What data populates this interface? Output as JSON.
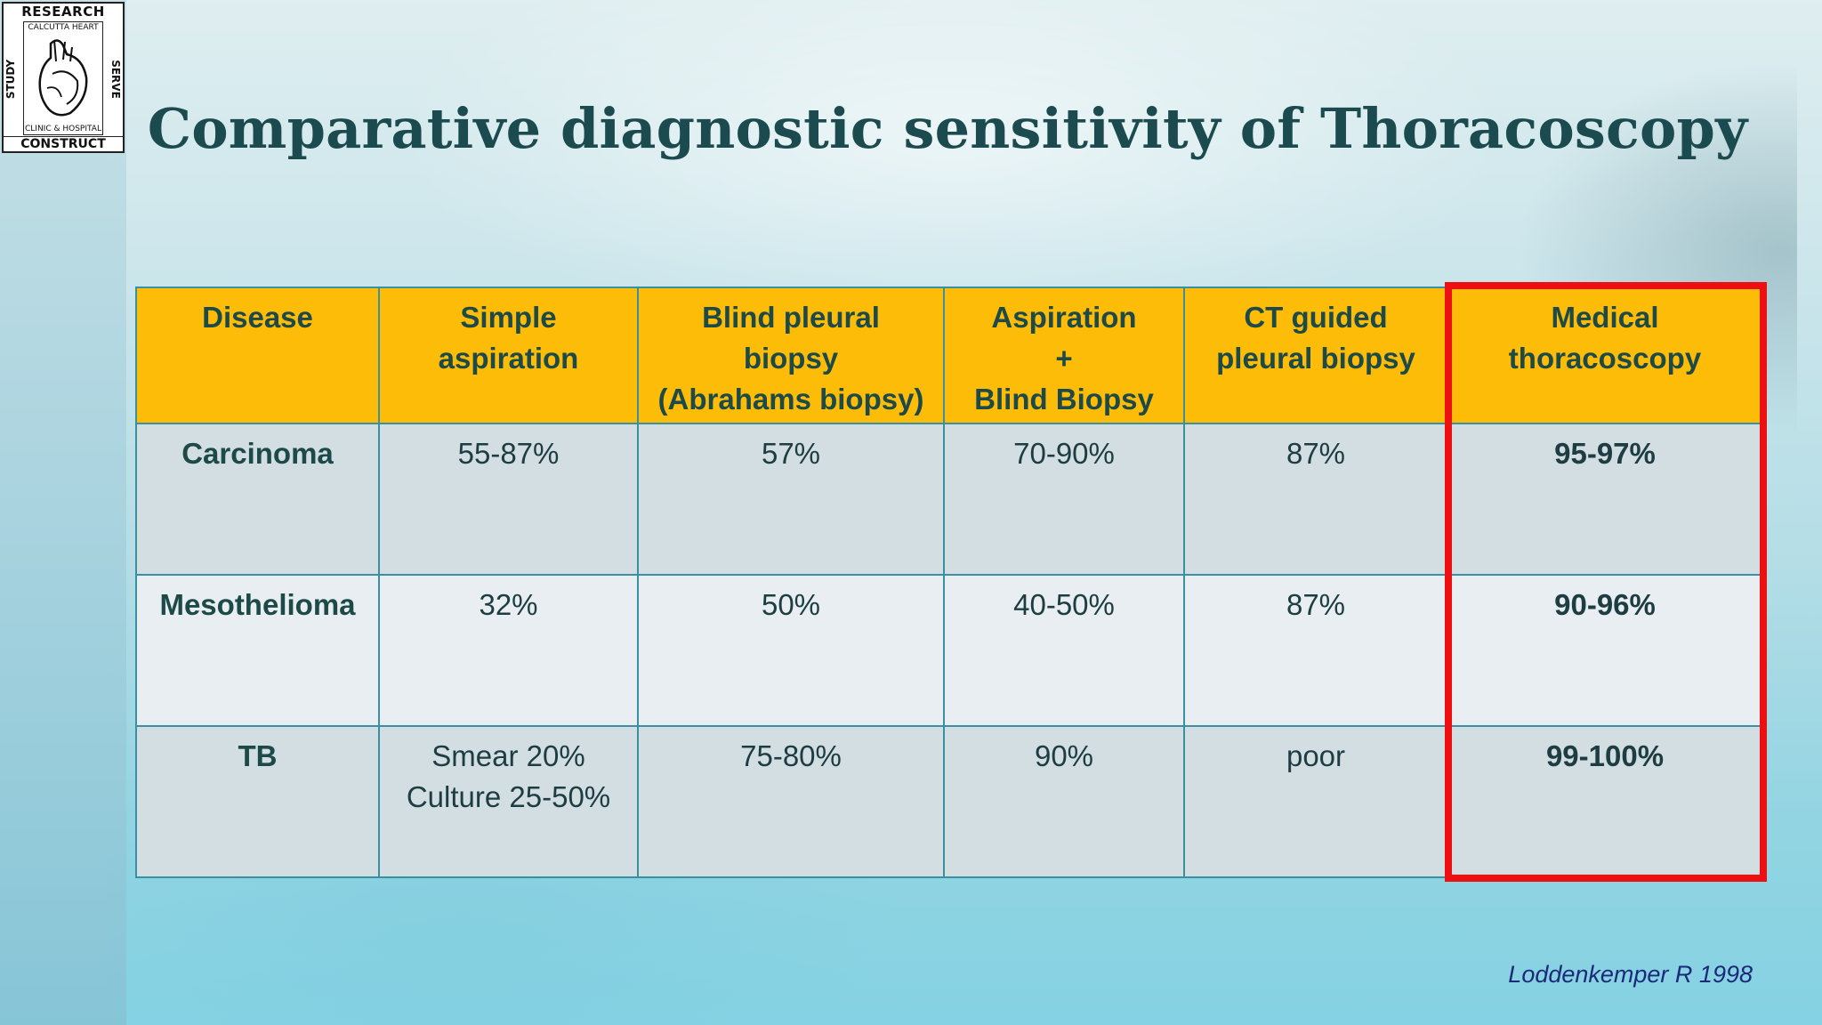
{
  "logo": {
    "top": "RESEARCH",
    "bottom": "CONSTRUCT",
    "left": "STUDY",
    "right": "SERVE",
    "inner_top": "CALCUTTA HEART",
    "inner_bottom": "CLINIC & HOSPITAL"
  },
  "title": "Comparative diagnostic sensitivity of Thoracoscopy",
  "table": {
    "headers": [
      [
        "Disease"
      ],
      [
        "Simple",
        "aspiration"
      ],
      [
        "Blind pleural",
        "biopsy",
        "(Abrahams biopsy)"
      ],
      [
        "Aspiration",
        "+",
        "Blind Biopsy"
      ],
      [
        "CT guided",
        "pleural biopsy"
      ],
      [
        "Medical",
        "thoracoscopy"
      ]
    ],
    "rows": [
      {
        "disease": "Carcinoma",
        "simple_aspiration": [
          "55-87%"
        ],
        "blind_pleural_biopsy": "57%",
        "aspiration_blind_biopsy": "70-90%",
        "ct_guided": "87%",
        "medical_thoracoscopy": "95-97%"
      },
      {
        "disease": "Mesothelioma",
        "simple_aspiration": [
          "32%"
        ],
        "blind_pleural_biopsy": "50%",
        "aspiration_blind_biopsy": "40-50%",
        "ct_guided": "87%",
        "medical_thoracoscopy": "90-96%"
      },
      {
        "disease": "TB",
        "simple_aspiration": [
          "Smear 20%",
          "Culture 25-50%"
        ],
        "blind_pleural_biopsy": "75-80%",
        "aspiration_blind_biopsy": "90%",
        "ct_guided": "poor",
        "medical_thoracoscopy": "99-100%"
      }
    ]
  },
  "citation": "Loddenkemper R 1998",
  "colors": {
    "header_bg": "#fdbc08",
    "title": "#1b4a4f",
    "highlight_border": "#ee1010",
    "citation": "#1a2a78"
  }
}
